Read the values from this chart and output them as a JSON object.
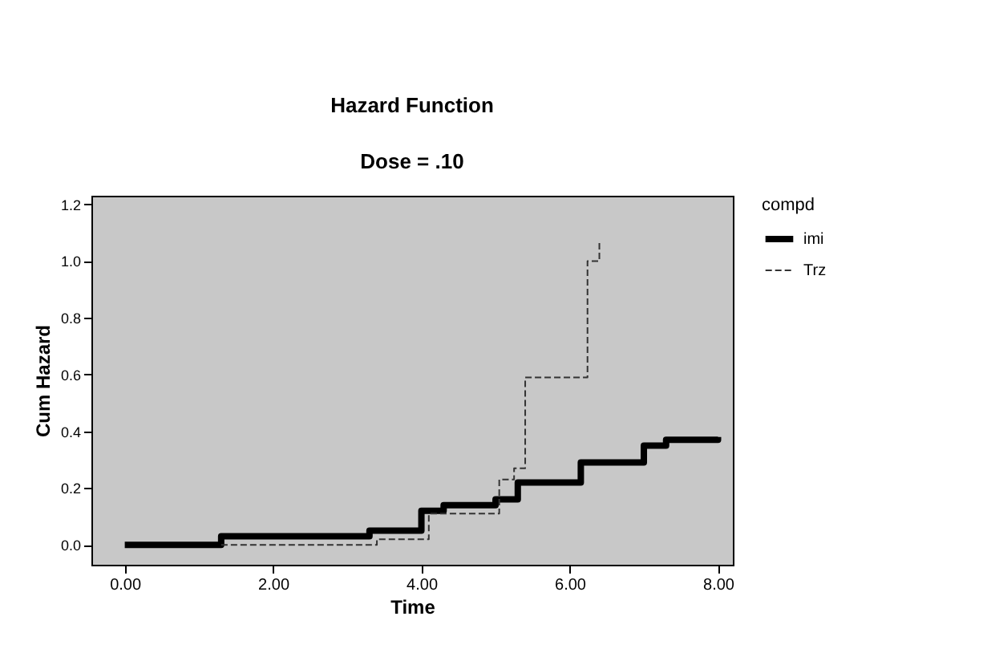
{
  "chart_data": {
    "type": "step",
    "title": "Hazard Function",
    "subtitle": "Dose = .10",
    "xlabel": "Time",
    "ylabel": "Cum Hazard",
    "legend_title": "compd",
    "legend": "top right",
    "grid": false,
    "xlim": [
      -0.45,
      8.2
    ],
    "ylim": [
      -0.07,
      1.23
    ],
    "xticks": [
      {
        "value": 0,
        "label": "0.00"
      },
      {
        "value": 2,
        "label": "2.00"
      },
      {
        "value": 4,
        "label": "4.00"
      },
      {
        "value": 6,
        "label": "6.00"
      },
      {
        "value": 8,
        "label": "8.00"
      }
    ],
    "yticks": [
      {
        "value": 0,
        "label": "0.0"
      },
      {
        "value": 0.2,
        "label": "0.2"
      },
      {
        "value": 0.4,
        "label": "0.4"
      },
      {
        "value": 0.6,
        "label": "0.6"
      },
      {
        "value": 0.8,
        "label": "0.8"
      },
      {
        "value": 1.0,
        "label": "1.0"
      },
      {
        "value": 1.2,
        "label": "1.2"
      }
    ],
    "series": [
      {
        "name": "imi",
        "color": "#000000",
        "line_style": "solid",
        "x": [
          0,
          1.3,
          3.3,
          4.0,
          4.3,
          5.0,
          5.3,
          6.15,
          7.0,
          7.3,
          8.0
        ],
        "values": [
          0,
          0.03,
          0.05,
          0.12,
          0.14,
          0.16,
          0.22,
          0.29,
          0.35,
          0.37,
          0.38
        ]
      },
      {
        "name": "Trz",
        "color": "#333333",
        "line_style": "dashed",
        "x": [
          1.3,
          3.4,
          4.1,
          5.05,
          5.25,
          5.4,
          6.24,
          6.4
        ],
        "values": [
          0,
          0.02,
          0.11,
          0.23,
          0.27,
          0.59,
          1.0,
          1.07
        ]
      }
    ]
  }
}
